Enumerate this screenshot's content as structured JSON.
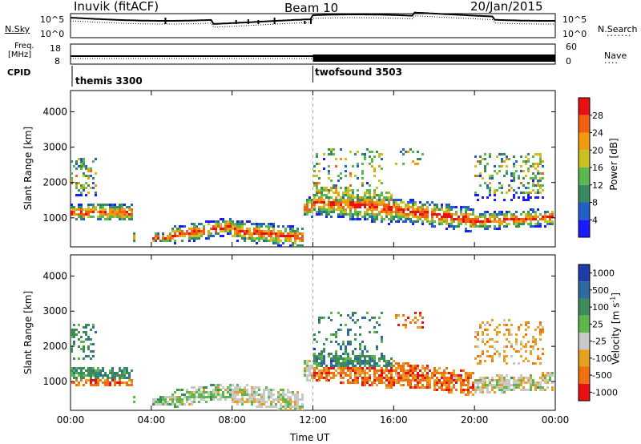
{
  "header": {
    "station": "Inuvik (fitACF)",
    "beam": "Beam 10",
    "date": "20/Jan/2015"
  },
  "scan_panel": {
    "nsky_label": "N.Sky",
    "nsearch_label": "N.Search",
    "left_top_tick": "10^5",
    "left_bottom_tick": "10^0",
    "right_top_tick": "10^5",
    "right_bottom_tick": "10^0"
  },
  "freq_panel": {
    "freq_label_1": "Freq.",
    "freq_label_2": "[MHz]",
    "left_ticks": [
      "18",
      "8"
    ],
    "right_ticks": [
      "60",
      "0"
    ],
    "nave_label": "Nave"
  },
  "cpid_panel": {
    "label": "CPID",
    "modes": [
      {
        "name": "themis 3300",
        "start_hour": 0
      },
      {
        "name": "twofsound 3503",
        "start_hour": 12
      }
    ]
  },
  "chart_data": [
    {
      "type": "heatmap",
      "name": "power",
      "ylabel": "Slant Range [km]",
      "yticks": [
        1000,
        2000,
        3000,
        4000
      ],
      "ylim": [
        180,
        4600
      ],
      "xlim": [
        0,
        24
      ],
      "colorbar": {
        "label": "Power [dB]",
        "ticks": [
          "4",
          "8",
          "12",
          "16",
          "20",
          "24",
          "28"
        ],
        "colors": [
          "#1a1aff",
          "#2060c8",
          "#3a8a60",
          "#5ab850",
          "#ccc020",
          "#f09a10",
          "#f06010",
          "#e81010"
        ]
      }
    },
    {
      "type": "heatmap",
      "name": "velocity",
      "ylabel": "Slant Range [km]",
      "yticks": [
        1000,
        2000,
        3000,
        4000
      ],
      "ylim": [
        180,
        4600
      ],
      "xlim": [
        0,
        24
      ],
      "xlabel": "Time UT",
      "xticks": [
        "00:00",
        "04:00",
        "08:00",
        "12:00",
        "16:00",
        "20:00",
        "00:00"
      ],
      "colorbar": {
        "label": "Velocity [m s",
        "label_sup": "-1",
        "label_end": "]",
        "ticks": [
          "1000",
          "500",
          "100",
          "25",
          "-25",
          "-100",
          "-500",
          "-1000"
        ],
        "colors": [
          "#1f3ca8",
          "#2f6aa0",
          "#3d8a5a",
          "#5cb848",
          "#c8c8c8",
          "#e8a020",
          "#f07010",
          "#e81010"
        ]
      }
    }
  ]
}
